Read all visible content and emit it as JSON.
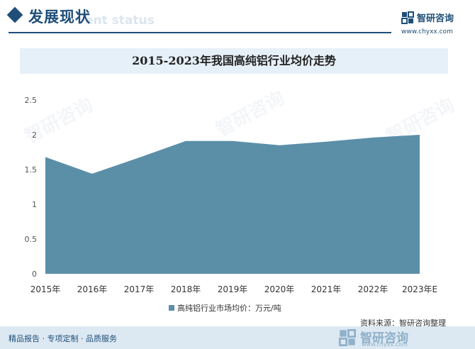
{
  "header": {
    "section_title": "发展现状",
    "section_sub": "ent status",
    "brand_name": "智研咨询",
    "brand_url": "www.chyxx.com"
  },
  "chart_title": "2015-2023年我国高纯铝行业均价走势",
  "legend_label": "高纯铝行业市场均价：万元/吨",
  "source": "资料来源：智研咨询整理",
  "footer": {
    "text": "精品报告 · 专项定制 · 品质服务",
    "logo_text": "智研咨询",
    "logo_url": "www.chyxx.com"
  },
  "watermark": "智研咨询",
  "colors": {
    "area": "#5b8fa8",
    "accent": "#1f4e79"
  },
  "chart_data": {
    "type": "area",
    "categories": [
      "2015年",
      "2016年",
      "2017年",
      "2018年",
      "2019年",
      "2020年",
      "2021年",
      "2022年",
      "2023年E"
    ],
    "series": [
      {
        "name": "高纯铝行业市场均价：万元/吨",
        "values": [
          1.68,
          1.44,
          1.67,
          1.91,
          1.91,
          1.85,
          1.9,
          1.96,
          2.0
        ]
      }
    ],
    "yticks": [
      "0",
      "0.5",
      "1",
      "1.5",
      "2",
      "2.5"
    ],
    "ylim": [
      0,
      2.5
    ],
    "grid": false,
    "legend": "bottom"
  }
}
